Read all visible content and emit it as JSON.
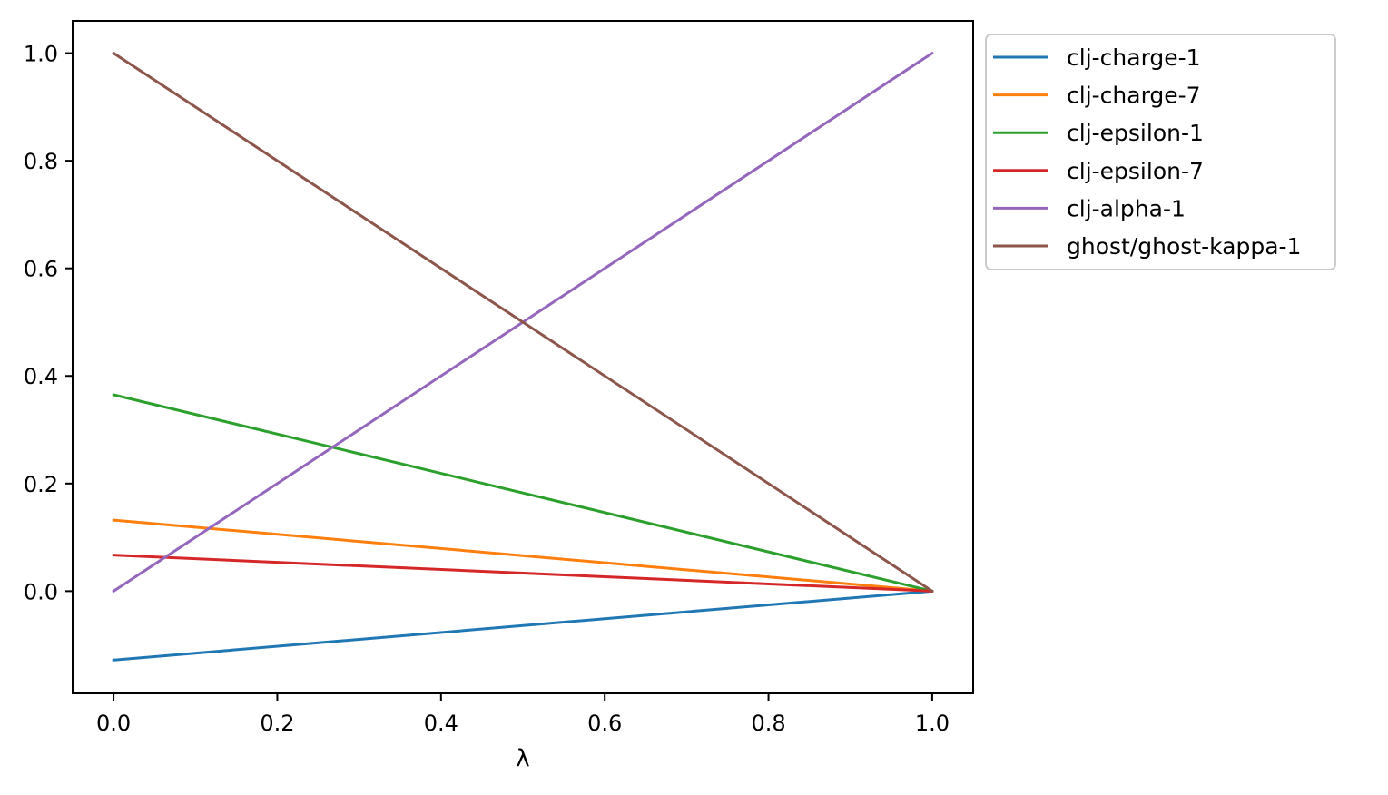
{
  "chart_data": {
    "type": "line",
    "xlabel": "λ",
    "ylabel": "",
    "xlim": [
      -0.05,
      1.05
    ],
    "ylim": [
      -0.19,
      1.06
    ],
    "x_ticks": [
      0.0,
      0.2,
      0.4,
      0.6,
      0.8,
      1.0
    ],
    "x_tick_labels": [
      "0.0",
      "0.2",
      "0.4",
      "0.6",
      "0.8",
      "1.0"
    ],
    "y_ticks": [
      0.0,
      0.2,
      0.4,
      0.6,
      0.8,
      1.0
    ],
    "y_tick_labels": [
      "0.0",
      "0.2",
      "0.4",
      "0.6",
      "0.8",
      "1.0"
    ],
    "grid": false,
    "legend_position": "outside-right-top",
    "x": [
      0.0,
      1.0
    ],
    "series": [
      {
        "name": "clj-charge-1",
        "color": "#1f77b4",
        "values": [
          -0.128,
          0.0
        ]
      },
      {
        "name": "clj-charge-7",
        "color": "#ff7f0e",
        "values": [
          0.132,
          0.0
        ]
      },
      {
        "name": "clj-epsilon-1",
        "color": "#2ca02c",
        "values": [
          0.365,
          0.0
        ]
      },
      {
        "name": "clj-epsilon-7",
        "color": "#d62728",
        "values": [
          0.067,
          0.0
        ]
      },
      {
        "name": "clj-alpha-1",
        "color": "#9467bd",
        "values": [
          0.0,
          1.0
        ]
      },
      {
        "name": "ghost/ghost-kappa-1",
        "color": "#8c564b",
        "values": [
          1.0,
          0.0
        ]
      }
    ]
  }
}
